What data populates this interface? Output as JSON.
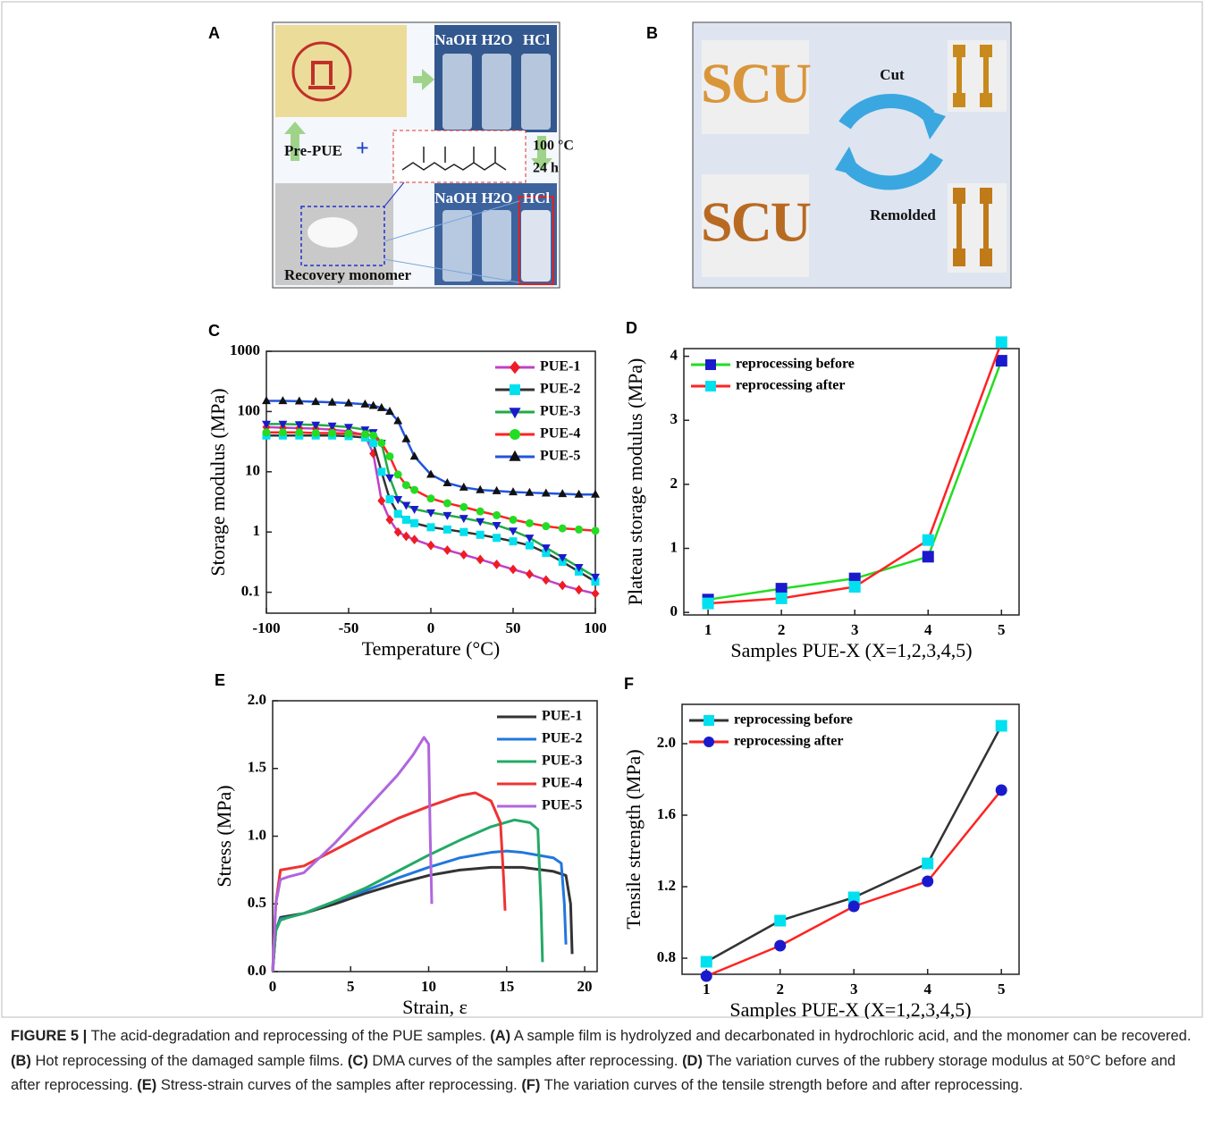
{
  "panels": {
    "A": {
      "letter": "A",
      "top_reagents": [
        "NaOH",
        "H2O",
        "HCl"
      ],
      "prepolymer": "Pre-PUE",
      "plus": "+",
      "temperature": "100 °C",
      "time": "24 h",
      "bottom_reagents": [
        "NaOH",
        "H2O",
        "HCl"
      ],
      "product": "Recovery monomer"
    },
    "B": {
      "letter": "B",
      "word_top": "SCU",
      "word_bottom": "SCU",
      "cut": "Cut",
      "remolded": "Remolded"
    }
  },
  "chart_data": [
    {
      "type": "line",
      "letter": "C",
      "xlabel": "Temperature (°C)",
      "ylabel": "Storage modulus (MPa)",
      "log_y": true,
      "legend": "upper right",
      "xlim": [
        -100,
        100
      ],
      "xticks": [
        -100,
        -50,
        0,
        50,
        100
      ],
      "ylim": [
        0.045,
        1000
      ],
      "yticks": [
        0.1,
        1,
        10,
        100,
        1000
      ],
      "x": [
        -100,
        -90,
        -80,
        -70,
        -60,
        -50,
        -40,
        -35,
        -30,
        -25,
        -20,
        -15,
        -10,
        0,
        10,
        20,
        30,
        40,
        50,
        60,
        70,
        80,
        90,
        100
      ],
      "series": [
        {
          "name": "PUE-1",
          "color": "#ee1c25",
          "line_color": "#c040c8",
          "marker": "diamond",
          "values": [
            55,
            54,
            53,
            52,
            50,
            47,
            40,
            20,
            3.3,
            1.6,
            1.0,
            0.85,
            0.75,
            0.6,
            0.5,
            0.42,
            0.35,
            0.29,
            0.24,
            0.2,
            0.16,
            0.13,
            0.11,
            0.095
          ]
        },
        {
          "name": "PUE-2",
          "color": "#00e0ee",
          "line_color": "#333333",
          "marker": "square",
          "values": [
            40,
            40,
            40,
            40,
            40,
            39,
            37,
            30,
            10,
            3.5,
            2.0,
            1.6,
            1.4,
            1.2,
            1.1,
            1.0,
            0.9,
            0.8,
            0.7,
            0.6,
            0.45,
            0.32,
            0.22,
            0.15
          ]
        },
        {
          "name": "PUE-3",
          "color": "#1a1acc",
          "line_color": "#22aa44",
          "marker": "triangle-down",
          "values": [
            62,
            62,
            61,
            60,
            58,
            55,
            50,
            45,
            30,
            8,
            3.5,
            2.8,
            2.4,
            2.1,
            1.9,
            1.7,
            1.5,
            1.3,
            1.05,
            0.8,
            0.55,
            0.38,
            0.26,
            0.18
          ]
        },
        {
          "name": "PUE-4",
          "color": "#22dd22",
          "line_color": "#ff2222",
          "marker": "circle",
          "values": [
            45,
            45,
            45,
            44,
            44,
            43,
            42,
            40,
            30,
            18,
            9,
            6,
            5,
            3.6,
            3.0,
            2.6,
            2.2,
            1.9,
            1.6,
            1.4,
            1.25,
            1.15,
            1.1,
            1.05
          ]
        },
        {
          "name": "PUE-5",
          "color": "#111111",
          "line_color": "#2255dd",
          "marker": "triangle-up",
          "values": [
            150,
            150,
            148,
            145,
            142,
            138,
            132,
            125,
            115,
            100,
            70,
            35,
            18,
            9,
            6.5,
            5.5,
            5,
            4.8,
            4.6,
            4.5,
            4.4,
            4.3,
            4.2,
            4.2
          ]
        }
      ]
    },
    {
      "type": "line",
      "letter": "D",
      "xlabel": "Samples PUE-X (X=1,2,3,4,5)",
      "ylabel": "Plateau storage modulus (MPa)",
      "legend": "upper left",
      "xlim": [
        0.67,
        5.24
      ],
      "xticks": [
        1,
        2,
        3,
        4,
        5
      ],
      "ylim": [
        -0.04,
        4.12
      ],
      "yticks": [
        0,
        1,
        2,
        3,
        4
      ],
      "x": [
        1,
        2,
        3,
        4,
        5
      ],
      "series": [
        {
          "name": "reprocessing before",
          "color": "#1a1acc",
          "line_color": "#22dd22",
          "marker": "square",
          "values": [
            0.2,
            0.37,
            0.53,
            0.87,
            3.93
          ]
        },
        {
          "name": "reprocessing after",
          "color": "#00e0ee",
          "line_color": "#ff2222",
          "marker": "square",
          "values": [
            0.14,
            0.22,
            0.4,
            1.13,
            4.22
          ]
        }
      ]
    },
    {
      "type": "line",
      "letter": "E",
      "xlabel": "Strain, ε",
      "ylabel": "Stress (MPa)",
      "legend": "upper right",
      "xlim": [
        0,
        20.8
      ],
      "xticks": [
        0,
        5,
        10,
        15,
        20
      ],
      "ylim": [
        0,
        2.0
      ],
      "yticks": [
        {
          "value": 0,
          "label": "0.0"
        },
        0.5,
        {
          "value": 1,
          "label": "1.0"
        },
        1.5,
        {
          "value": 2,
          "label": "2.0"
        }
      ],
      "series": [
        {
          "name": "PUE-1",
          "color": "#333333",
          "x": [
            0,
            0.2,
            0.5,
            1,
            2,
            4,
            6,
            8,
            10,
            12,
            14,
            16,
            18,
            18.8,
            19.1,
            19.2
          ],
          "values": [
            0,
            0.3,
            0.4,
            0.41,
            0.43,
            0.5,
            0.58,
            0.65,
            0.71,
            0.75,
            0.77,
            0.77,
            0.74,
            0.71,
            0.5,
            0.13
          ]
        },
        {
          "name": "PUE-2",
          "color": "#2277dd",
          "x": [
            0,
            0.2,
            0.5,
            1,
            2,
            4,
            6,
            8,
            10,
            12,
            14,
            15,
            16,
            17,
            18,
            18.5,
            18.7,
            18.8
          ],
          "values": [
            0,
            0.3,
            0.39,
            0.4,
            0.43,
            0.52,
            0.6,
            0.69,
            0.77,
            0.84,
            0.88,
            0.89,
            0.88,
            0.86,
            0.84,
            0.8,
            0.5,
            0.2
          ]
        },
        {
          "name": "PUE-3",
          "color": "#22aa66",
          "x": [
            0,
            0.2,
            0.5,
            1,
            2,
            4,
            6,
            8,
            10,
            12,
            14,
            15.5,
            16.5,
            17,
            17.2,
            17.3
          ],
          "values": [
            0,
            0.3,
            0.38,
            0.4,
            0.43,
            0.52,
            0.62,
            0.74,
            0.86,
            0.97,
            1.07,
            1.12,
            1.1,
            1.05,
            0.5,
            0.07
          ]
        },
        {
          "name": "PUE-4",
          "color": "#ee3333",
          "x": [
            0,
            0.2,
            0.5,
            1,
            2,
            4,
            6,
            8,
            10,
            12,
            13,
            14,
            14.6,
            14.8,
            14.9
          ],
          "values": [
            0,
            0.5,
            0.75,
            0.76,
            0.78,
            0.9,
            1.02,
            1.13,
            1.22,
            1.3,
            1.32,
            1.26,
            1.1,
            0.7,
            0.45
          ]
        },
        {
          "name": "PUE-5",
          "color": "#b066dd",
          "x": [
            0,
            0.2,
            0.5,
            1,
            2,
            4,
            6,
            8,
            9,
            9.7,
            10,
            10.1,
            10.2
          ],
          "values": [
            0,
            0.5,
            0.68,
            0.7,
            0.73,
            0.95,
            1.2,
            1.45,
            1.6,
            1.73,
            1.68,
            1.0,
            0.5
          ]
        }
      ]
    },
    {
      "type": "line",
      "letter": "F",
      "xlabel": "Samples PUE-X (X=1,2,3,4,5)",
      "ylabel": "Tensile strength (MPa)",
      "legend": "upper left",
      "xlim": [
        0.67,
        5.24
      ],
      "xticks": [
        1,
        2,
        3,
        4,
        5
      ],
      "ylim": [
        0.71,
        2.22
      ],
      "yticks": [
        0.8,
        1.2,
        1.6,
        {
          "value": 2,
          "label": "2.0"
        }
      ],
      "x": [
        1,
        2,
        3,
        4,
        5
      ],
      "series": [
        {
          "name": "reprocessing before",
          "color": "#00e0ee",
          "line_color": "#333333",
          "marker": "square",
          "values": [
            0.78,
            1.01,
            1.14,
            1.33,
            2.1
          ]
        },
        {
          "name": "reprocessing after",
          "color": "#1a1acc",
          "line_color": "#ff2222",
          "marker": "circle",
          "values": [
            0.7,
            0.87,
            1.09,
            1.23,
            1.74
          ]
        }
      ]
    }
  ],
  "caption": [
    {
      "text": "FIGURE 5 |",
      "bold": true
    },
    {
      "text": " The acid-degradation and reprocessing of the PUE samples. ",
      "bold": false
    },
    {
      "text": "(A)",
      "bold": true
    },
    {
      "text": " A sample film is hydrolyzed and decarbonated in hydrochloric acid, and the monomer can be recovered. ",
      "bold": false
    },
    {
      "text": "(B)",
      "bold": true
    },
    {
      "text": " Hot reprocessing of the damaged sample films. ",
      "bold": false
    },
    {
      "text": "(C)",
      "bold": true
    },
    {
      "text": " DMA curves of the samples after reprocessing. ",
      "bold": false
    },
    {
      "text": "(D)",
      "bold": true
    },
    {
      "text": " The variation curves of the rubbery storage modulus at 50°C before and after reprocessing. ",
      "bold": false
    },
    {
      "text": "(E)",
      "bold": true
    },
    {
      "text": " Stress-strain curves of the samples after reprocessing. ",
      "bold": false
    },
    {
      "text": "(F)",
      "bold": true
    },
    {
      "text": " The variation curves of the tensile strength before and after reprocessing.",
      "bold": false
    }
  ]
}
